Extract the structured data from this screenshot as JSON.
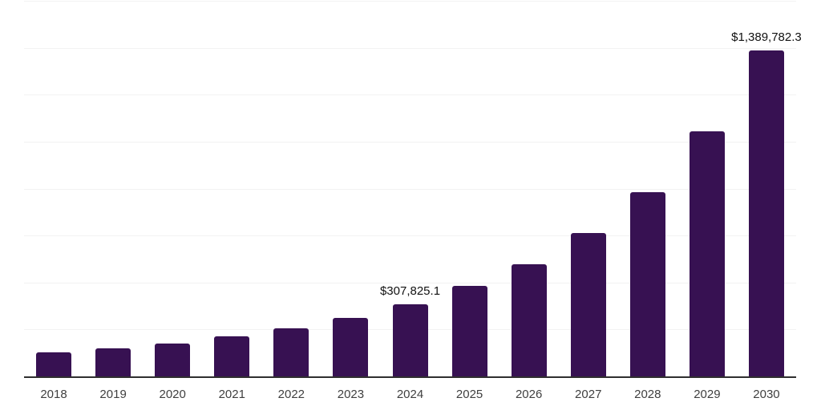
{
  "chart": {
    "colors": {
      "background": "#ffffff",
      "bar": "#371152",
      "gridline": "#f2f2f2",
      "baseline": "#2f2f2f",
      "data_label": "#111111",
      "tick_label": "#3f3f3f"
    }
  },
  "chart_data": {
    "type": "bar",
    "title": "",
    "xlabel": "",
    "ylabel": "",
    "categories": [
      "2018",
      "2019",
      "2020",
      "2021",
      "2022",
      "2023",
      "2024",
      "2025",
      "2026",
      "2027",
      "2028",
      "2029",
      "2030"
    ],
    "values": [
      104000,
      119000,
      141000,
      170000,
      206000,
      248000,
      307825.1,
      386000,
      478000,
      611000,
      786000,
      1043000,
      1389782.3
    ],
    "ylim": [
      0,
      1600000
    ],
    "grid_step": 200000,
    "grid": true,
    "legend": false,
    "y_axis_labels_visible": false,
    "data_labels": [
      {
        "category": "2024",
        "text": "$307,825.1"
      },
      {
        "category": "2030",
        "text": "$1,389,782.3"
      }
    ]
  }
}
